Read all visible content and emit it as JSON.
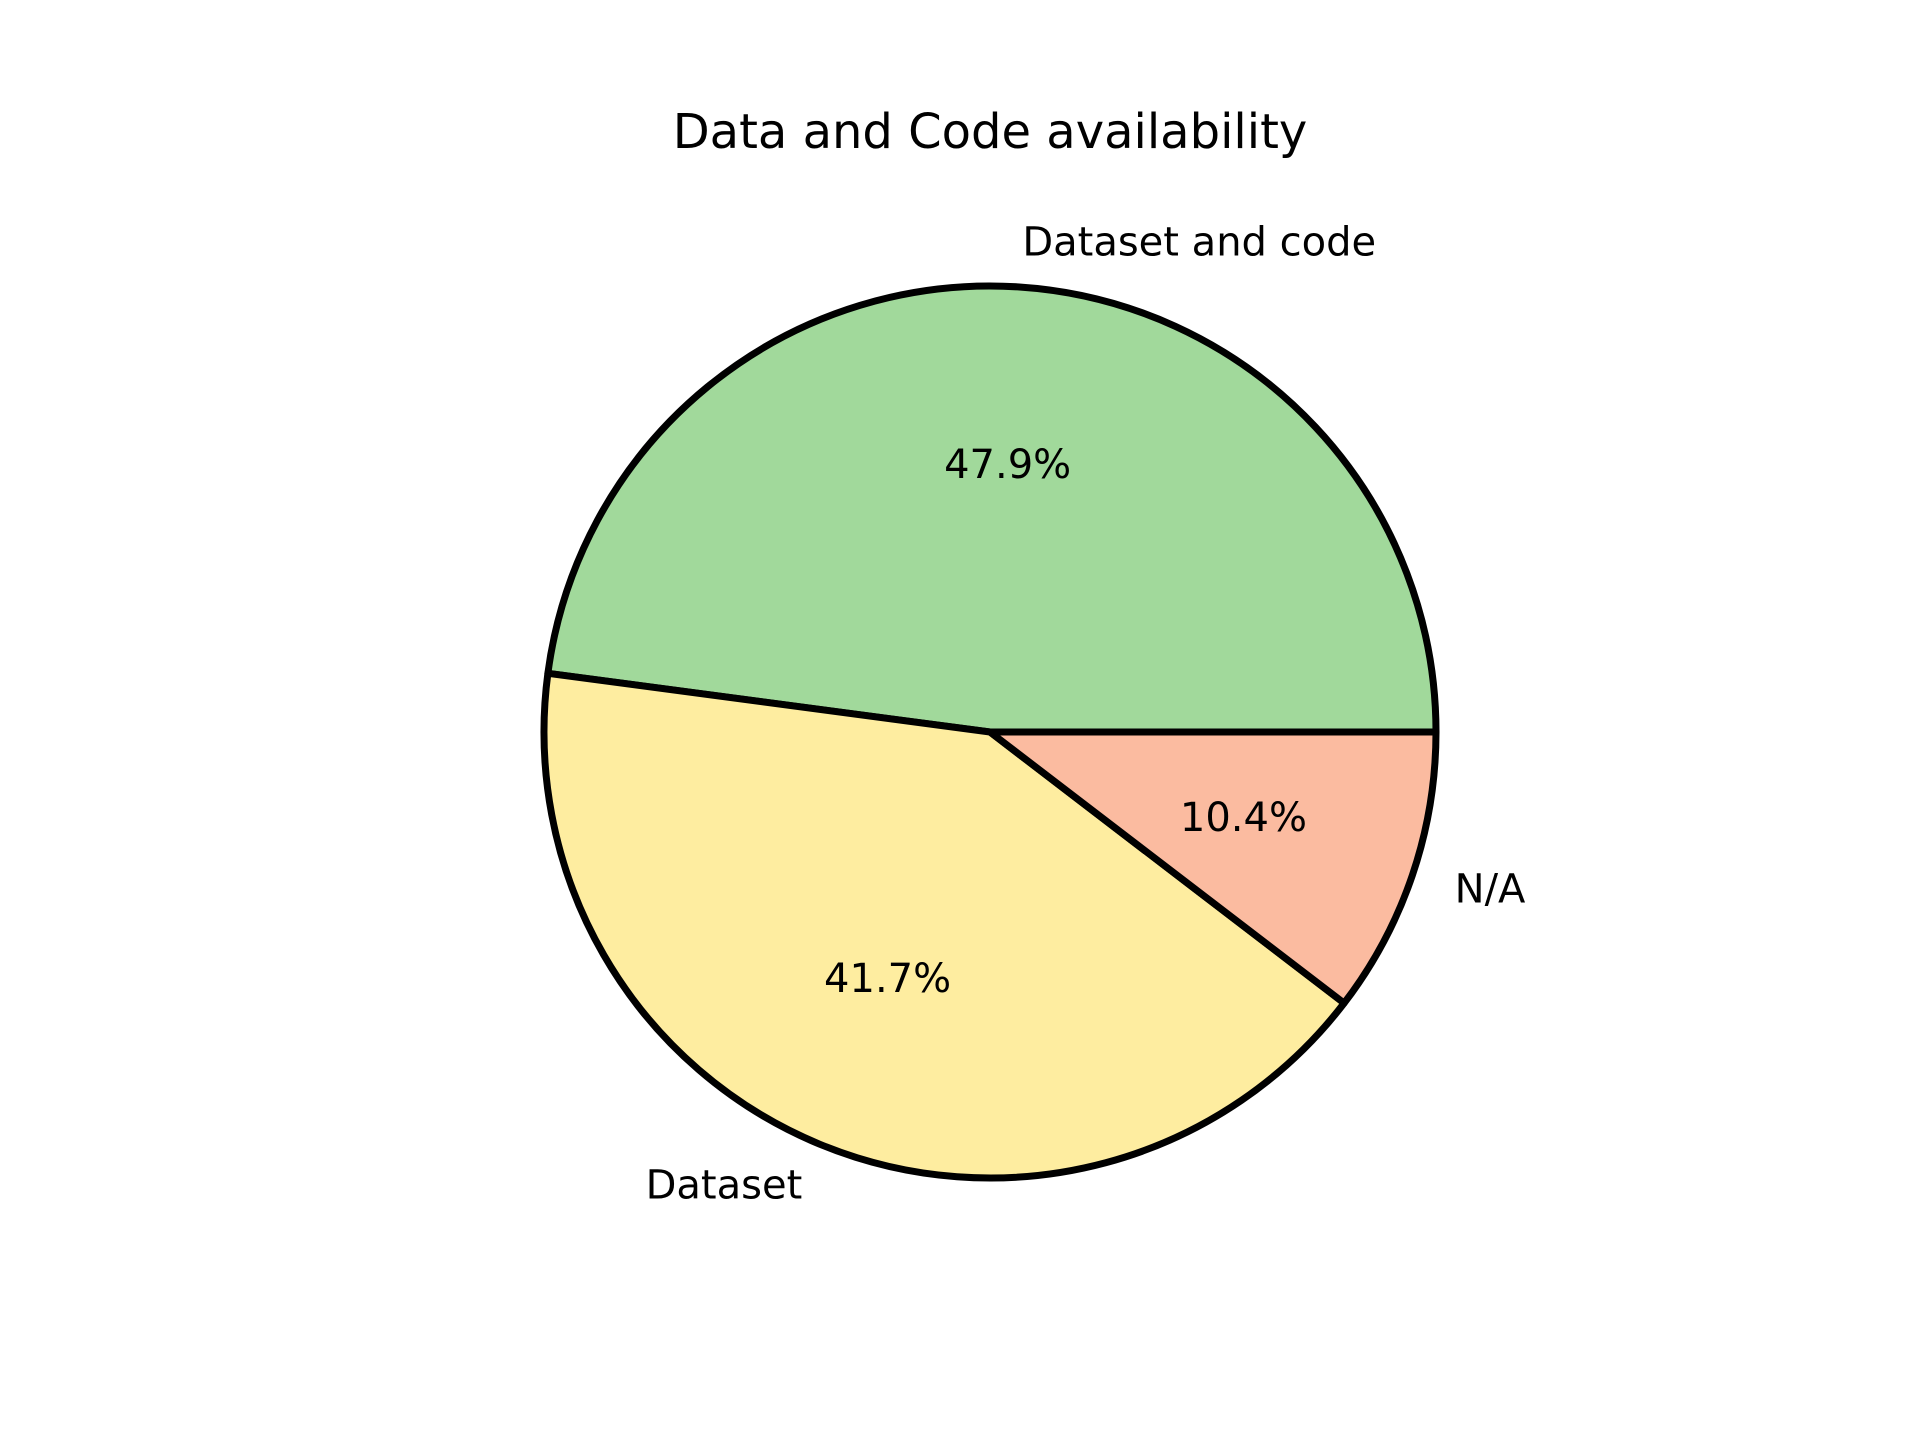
{
  "chart_data": {
    "type": "pie",
    "title": "Data and Code availability",
    "start_angle_deg": 0,
    "direction": "counterclockwise",
    "slices": [
      {
        "label": "Dataset and code",
        "value": 47.9,
        "pct_label": "47.9%",
        "color": "#a1d99b"
      },
      {
        "label": "Dataset",
        "value": 41.7,
        "pct_label": "41.7%",
        "color": "#feeda0"
      },
      {
        "label": "N/A",
        "value": 10.4,
        "pct_label": "10.4%",
        "color": "#fbbba0"
      }
    ],
    "edge_color": "#000000"
  }
}
